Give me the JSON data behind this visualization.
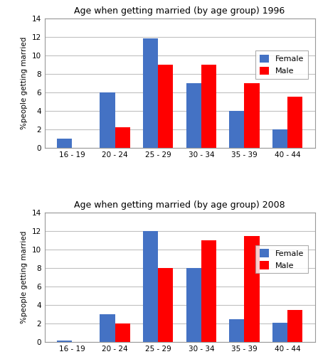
{
  "categories": [
    "16 - 19",
    "20 - 24",
    "25 - 29",
    "30 - 34",
    "35 - 39",
    "40 - 44"
  ],
  "chart1": {
    "title": "Age when getting married (by age group) 1996",
    "female": [
      1,
      6,
      11.8,
      7,
      4,
      2
    ],
    "male": [
      0,
      2.2,
      9,
      9,
      7,
      5.5
    ]
  },
  "chart2": {
    "title": "Age when getting married (by age group) 2008",
    "female": [
      0.2,
      3,
      12,
      8,
      2.5,
      2.1
    ],
    "male": [
      0,
      2,
      8,
      11,
      11.5,
      3.5
    ]
  },
  "ylabel": "%people getting married",
  "ylim": [
    0,
    14
  ],
  "yticks": [
    0,
    2,
    4,
    6,
    8,
    10,
    12,
    14
  ],
  "female_color": "#4472C4",
  "male_color": "#FF0000",
  "bar_width": 0.35,
  "legend_labels": [
    "Female",
    "Male"
  ],
  "background_color": "#FFFFFF",
  "axes_bg_color": "#FFFFFF",
  "grid_color": "#C0C0C0",
  "title_fontsize": 9,
  "axis_fontsize": 7.5,
  "tick_fontsize": 7.5,
  "legend_fontsize": 8
}
